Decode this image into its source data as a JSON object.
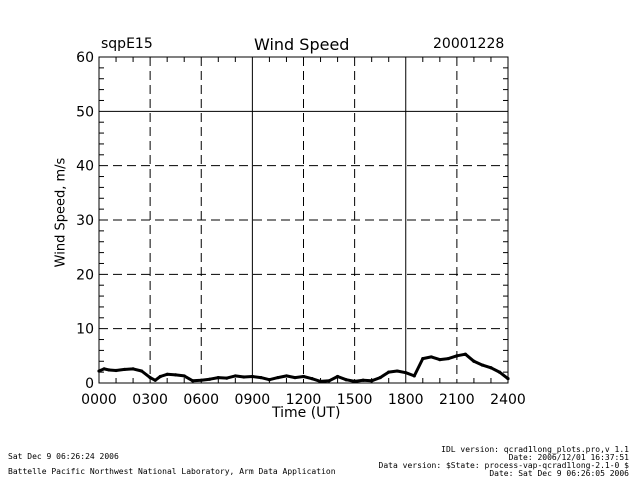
{
  "header": {
    "site": "sqpE15",
    "title": "Wind Speed",
    "date": "20001228"
  },
  "footer": {
    "left_line1": "Sat Dec  9 06:26:24 2006",
    "left_line2": "Battelle Pacific Northwest National Laboratory, Arm Data Application",
    "right_lines": [
      "IDL version: qcrad1long_plots.pro,v 1.1",
      "Date: 2006/12/01 16:37:51",
      "Data version: $State: process-vap-qcrad1long-2.1-0 $",
      "Date: Sat Dec  9 06:26:05 2006"
    ]
  },
  "chart_data": {
    "type": "line",
    "title": "Wind Speed",
    "xlabel": "Time (UT)",
    "ylabel": "Wind Speed, m/s",
    "xlim": [
      0,
      24
    ],
    "ylim": [
      0,
      60
    ],
    "x_ticks": [
      "0000",
      "0300",
      "0600",
      "0900",
      "1200",
      "1500",
      "1800",
      "2100",
      "2400"
    ],
    "y_ticks": [
      "0",
      "10",
      "20",
      "30",
      "40",
      "50",
      "60"
    ],
    "grid": true,
    "color": "#000000",
    "series": [
      {
        "x": [
          0,
          0.3,
          0.6,
          1,
          1.5,
          2,
          2.5,
          3,
          3.3,
          3.6,
          4,
          4.5,
          5,
          5.5,
          6,
          6.5,
          7,
          7.5,
          8,
          8.5,
          9,
          9.5,
          10,
          10.5,
          11,
          11.5,
          12,
          12.5,
          13,
          13.5,
          14,
          14.5,
          15,
          15.5,
          16,
          16.5,
          17,
          17.5,
          18,
          18.5,
          19,
          19.5,
          20,
          20.5,
          21,
          21.5,
          22,
          22.5,
          23,
          23.5,
          24
        ],
        "values": [
          2.2,
          2.6,
          2.4,
          2.3,
          2.5,
          2.6,
          2.2,
          1.0,
          0.5,
          1.2,
          1.6,
          1.5,
          1.3,
          0.4,
          0.5,
          0.7,
          1.0,
          0.9,
          1.3,
          1.1,
          1.2,
          1.0,
          0.6,
          1.0,
          1.3,
          1.0,
          1.2,
          0.8,
          0.3,
          0.4,
          1.2,
          0.6,
          0.3,
          0.5,
          0.4,
          1.0,
          2.0,
          2.2,
          1.9,
          1.3,
          4.5,
          4.8,
          4.3,
          4.5,
          5.0,
          5.3,
          4.0,
          3.3,
          2.8,
          2.0,
          0.8
        ]
      }
    ]
  }
}
